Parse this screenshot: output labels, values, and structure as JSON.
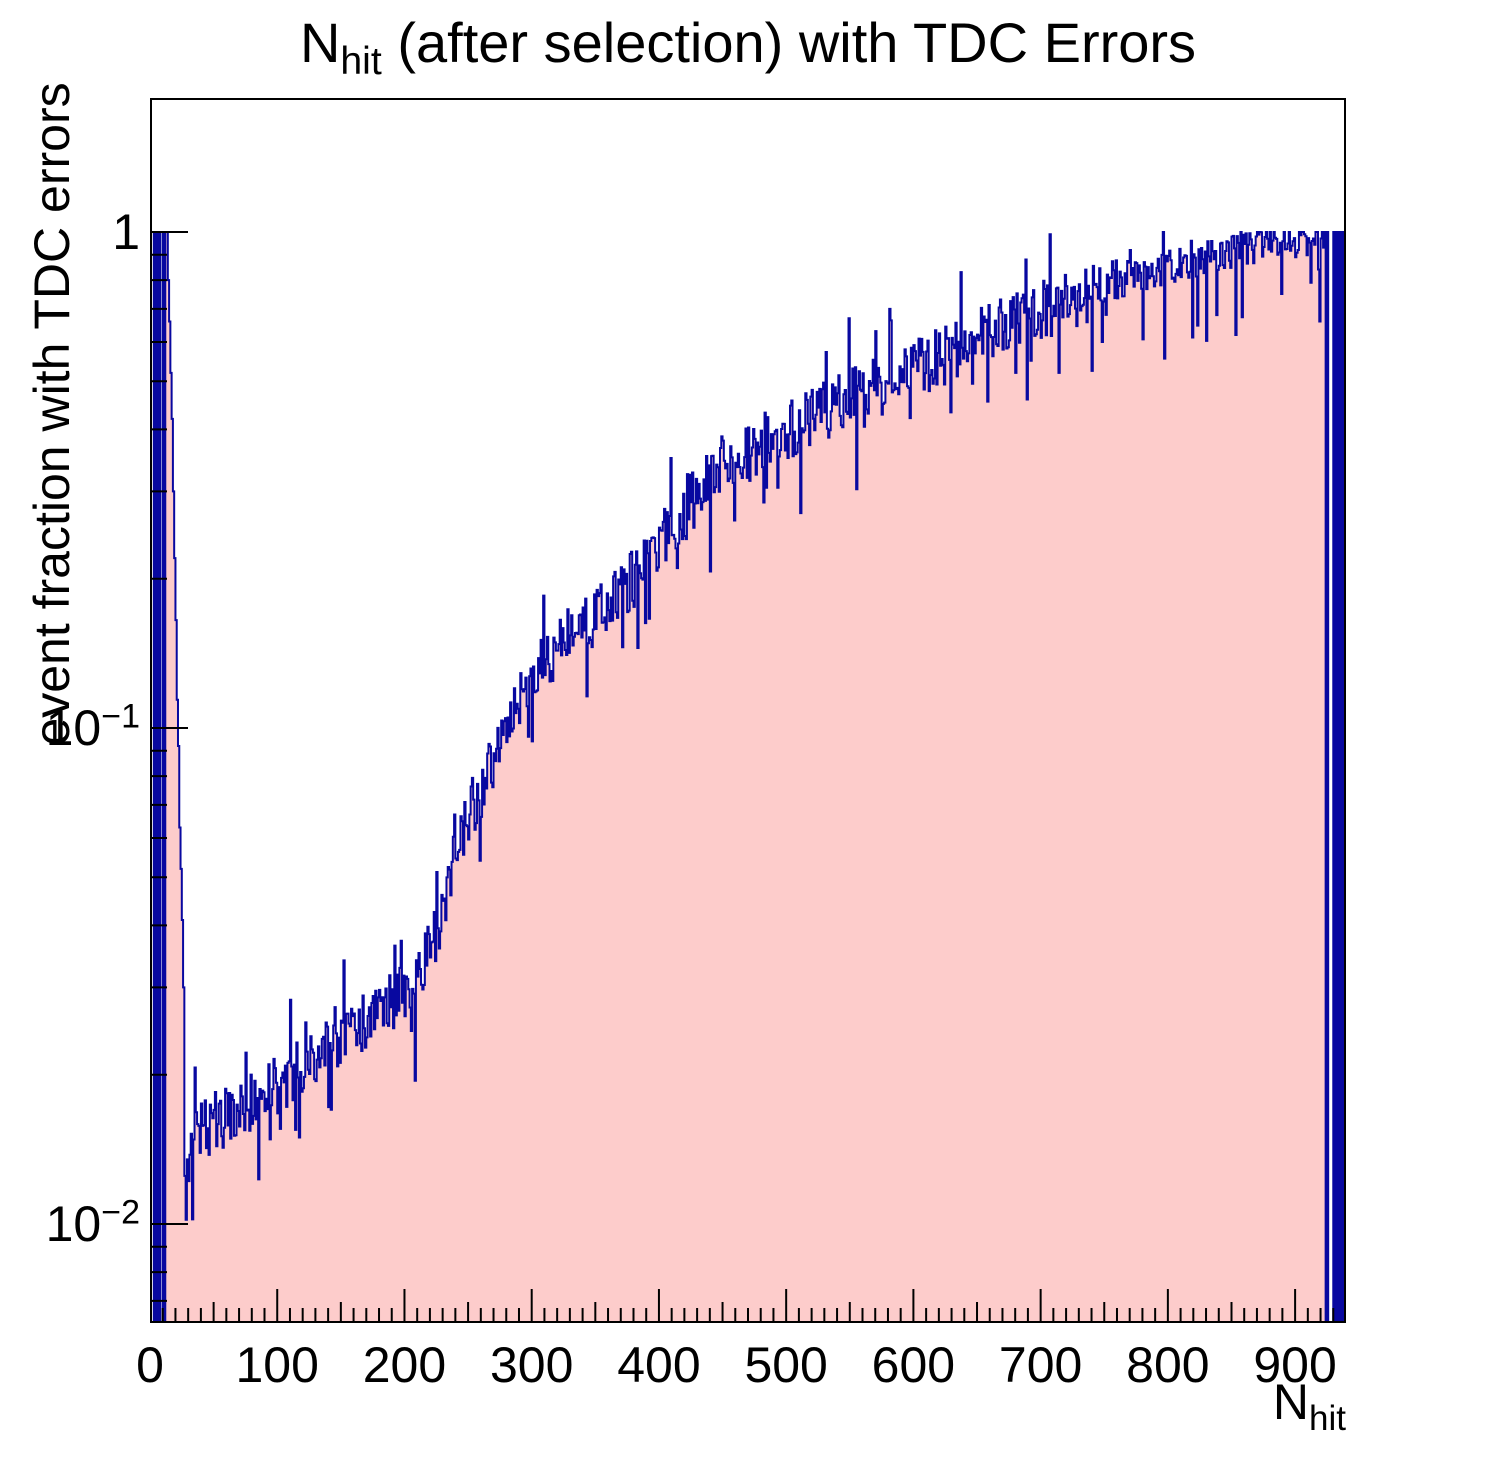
{
  "title": {
    "prefix": "N",
    "subscript": "hit",
    "suffix": " (after selection) with TDC Errors"
  },
  "y_axis": {
    "label": "event fraction with TDC errors",
    "scale": "log",
    "ticks": [
      {
        "text": "1",
        "sup": "",
        "value": 1
      },
      {
        "text": "10",
        "sup": "−1",
        "value": 0.1
      },
      {
        "text": "10",
        "sup": "−2",
        "value": 0.01
      }
    ]
  },
  "x_axis": {
    "title_base": "N",
    "title_sub": "hit",
    "min": 0,
    "max": 940,
    "major_tick_step": 100,
    "medium_tick_step": 50,
    "minor_tick_step": 10,
    "tick_labels": [
      {
        "text": "0",
        "value": 0
      },
      {
        "text": "100",
        "value": 100
      },
      {
        "text": "200",
        "value": 200
      },
      {
        "text": "300",
        "value": 300
      },
      {
        "text": "400",
        "value": 400
      },
      {
        "text": "500",
        "value": 500
      },
      {
        "text": "600",
        "value": 600
      },
      {
        "text": "700",
        "value": 700
      },
      {
        "text": "800",
        "value": 800
      },
      {
        "text": "900",
        "value": 900
      }
    ]
  },
  "colors": {
    "fill": "#fdcccb",
    "line": "#0808a0",
    "axis": "#000000",
    "background": "#ffffff"
  },
  "chart_data": {
    "type": "area",
    "title": "N_hit (after selection) with TDC Errors",
    "xlabel": "N_hit",
    "ylabel": "event fraction with TDC errors",
    "x_range": [
      0,
      940
    ],
    "bin_width": 1,
    "y_scale": "log",
    "y_display_range": [
      0.00631,
      1.86
    ],
    "grid": false,
    "legend": false,
    "head_bins_start": 0,
    "head_bins": [
      0,
      0,
      0,
      1,
      0,
      1,
      0,
      1,
      0,
      0,
      1,
      0,
      1,
      1,
      0.8,
      0.66,
      0.52,
      0.42,
      0.3,
      0.22,
      0.165,
      0.114,
      0.092,
      0.063,
      0.052,
      0.041,
      0.03
    ],
    "tail_bins_start": 920,
    "tail_bins": [
      0.97,
      1,
      0.93,
      1,
      0,
      1,
      0,
      0,
      0,
      0,
      1,
      0,
      1,
      0,
      1,
      0,
      1,
      0,
      1,
      1
    ],
    "trend_anchors": [
      [
        31,
        0.0148
      ],
      [
        40,
        0.0155
      ],
      [
        60,
        0.0165
      ],
      [
        80,
        0.0175
      ],
      [
        100,
        0.019
      ],
      [
        120,
        0.021
      ],
      [
        140,
        0.0225
      ],
      [
        160,
        0.0245
      ],
      [
        180,
        0.0265
      ],
      [
        200,
        0.0295
      ],
      [
        215,
        0.033
      ],
      [
        228,
        0.04
      ],
      [
        240,
        0.058
      ],
      [
        252,
        0.068
      ],
      [
        265,
        0.08
      ],
      [
        280,
        0.098
      ],
      [
        300,
        0.125
      ],
      [
        320,
        0.145
      ],
      [
        340,
        0.16
      ],
      [
        360,
        0.175
      ],
      [
        380,
        0.2
      ],
      [
        400,
        0.235
      ],
      [
        420,
        0.27
      ],
      [
        437,
        0.325
      ],
      [
        460,
        0.35
      ],
      [
        480,
        0.375
      ],
      [
        500,
        0.4
      ],
      [
        520,
        0.42
      ],
      [
        540,
        0.445
      ],
      [
        560,
        0.475
      ],
      [
        580,
        0.5
      ],
      [
        600,
        0.53
      ],
      [
        620,
        0.56
      ],
      [
        640,
        0.6
      ],
      [
        660,
        0.63
      ],
      [
        680,
        0.66
      ],
      [
        700,
        0.69
      ],
      [
        720,
        0.72
      ],
      [
        740,
        0.75
      ],
      [
        760,
        0.78
      ],
      [
        780,
        0.82
      ],
      [
        800,
        0.85
      ],
      [
        820,
        0.875
      ],
      [
        840,
        0.9
      ],
      [
        860,
        0.92
      ],
      [
        880,
        0.94
      ],
      [
        900,
        0.955
      ],
      [
        917,
        0.97
      ]
    ],
    "special_bins": {
      "27": 0.0125,
      "28": 0.0102,
      "29": 0.0135,
      "30": 0.0122,
      "140": 0.0172,
      "152": 0.034,
      "205": 0.0245,
      "259": 0.054,
      "300": 0.094,
      "340": 0.175,
      "383": 0.145,
      "414": 0.21,
      "471": 0.315,
      "484": 0.305,
      "549": 0.67,
      "561": 0.405,
      "581": 0.7,
      "637": 0.83,
      "658": 0.455,
      "680": 0.52,
      "688": 0.88,
      "714": 0.52,
      "748": 0.6,
      "770": 0.92,
      "818": 0.96,
      "838": 0.68,
      "853": 0.62,
      "877": 1,
      "889": 0.75,
      "902": 0.92,
      "906": 1,
      "912": 0.79,
      "916": 1,
      "918": 0.84,
      "919": 0.66
    },
    "noise_log10_amplitude": 0.062,
    "clamp_max": 1.0
  }
}
